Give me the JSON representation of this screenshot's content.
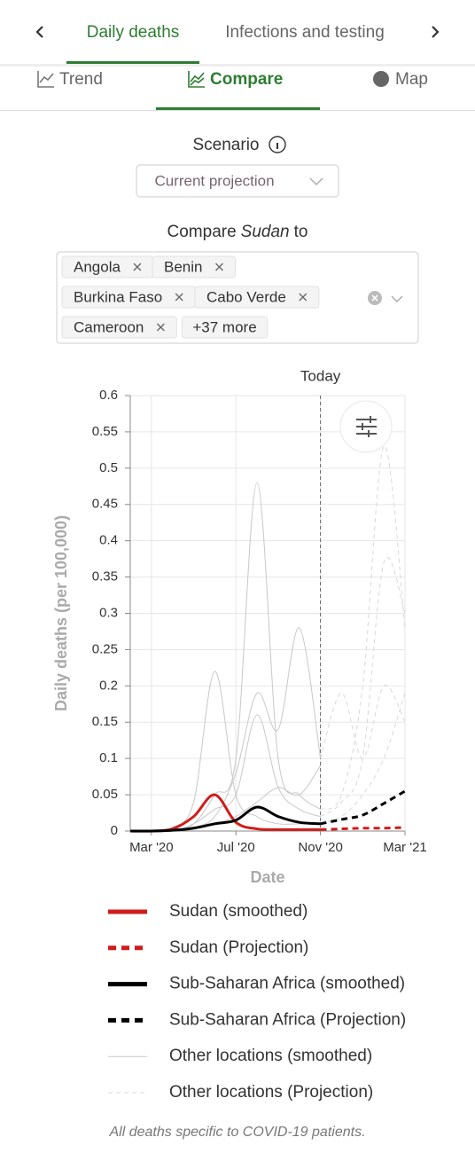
{
  "tabs": [
    "Daily deaths",
    "Infections and testing"
  ],
  "subtabs": [
    "Trend",
    "Compare",
    "Map"
  ],
  "scenario": {
    "label": "Scenario",
    "value": "Current projection"
  },
  "compare": {
    "prefix": "Compare",
    "location": "Sudan",
    "suffix": "to",
    "chips": [
      "Angola",
      "Benin",
      "Burkina Faso",
      "Cabo Verde",
      "Cameroon"
    ],
    "more": "+37 more"
  },
  "chart_data": {
    "type": "line",
    "x_label": "Date",
    "y_label": "Daily deaths (per 100,000)",
    "xlim": [
      "2020-02",
      "2021-03"
    ],
    "xticks": [
      {
        "value": "2020-03",
        "label": "Mar '20"
      },
      {
        "value": "2020-07",
        "label": "Jul '20"
      },
      {
        "value": "2020-11",
        "label": "Nov '20"
      },
      {
        "value": "2021-03",
        "label": "Mar '21"
      }
    ],
    "ylim": [
      0,
      0.6
    ],
    "yticks": [
      0,
      0.05,
      0.1,
      0.15,
      0.2,
      0.25,
      0.3,
      0.35,
      0.4,
      0.45,
      0.5,
      0.55,
      0.6
    ],
    "grid": true,
    "annotations": [
      {
        "text": "Today",
        "x": "2020-11"
      }
    ],
    "series": [
      {
        "name": "Sudan (smoothed)",
        "color": "#d01c1c",
        "dash": false,
        "width": 3,
        "x": [
          "2020-02",
          "2020-03",
          "2020-04",
          "2020-05",
          "2020-06",
          "2020-07",
          "2020-08",
          "2020-09",
          "2020-10",
          "2020-11"
        ],
        "values": [
          0,
          0,
          0.003,
          0.02,
          0.05,
          0.012,
          0.003,
          0.002,
          0.002,
          0.002
        ]
      },
      {
        "name": "Sudan (Projection)",
        "color": "#d01c1c",
        "dash": true,
        "width": 3,
        "x": [
          "2020-11",
          "2020-12",
          "2021-01",
          "2021-02",
          "2021-03"
        ],
        "values": [
          0.002,
          0.003,
          0.004,
          0.004,
          0.005
        ]
      },
      {
        "name": "Sub-Saharan Africa (smoothed)",
        "color": "#000000",
        "dash": false,
        "width": 3,
        "x": [
          "2020-02",
          "2020-03",
          "2020-04",
          "2020-05",
          "2020-06",
          "2020-07",
          "2020-08",
          "2020-09",
          "2020-10",
          "2020-11"
        ],
        "values": [
          0,
          0,
          0.001,
          0.004,
          0.01,
          0.015,
          0.033,
          0.02,
          0.012,
          0.01
        ]
      },
      {
        "name": "Sub-Saharan Africa (Projection)",
        "color": "#000000",
        "dash": true,
        "width": 3,
        "x": [
          "2020-11",
          "2020-12",
          "2021-01",
          "2021-02",
          "2021-03"
        ],
        "values": [
          0.01,
          0.016,
          0.022,
          0.038,
          0.055
        ]
      },
      {
        "name": "Other locations (smoothed)",
        "color": "#c8c8c8",
        "dash": false,
        "width": 1,
        "x": [
          "2020-02",
          "2020-03",
          "2020-04",
          "2020-05",
          "2020-06",
          "2020-07",
          "2020-08",
          "2020-09",
          "2020-10",
          "2020-11"
        ],
        "values": [
          [
            0,
            0,
            0.005,
            0.04,
            0.22,
            0.05,
            0.02,
            0.01,
            0.01,
            0.01
          ],
          [
            0,
            0,
            0,
            0.01,
            0.05,
            0.1,
            0.48,
            0.1,
            0.05,
            0.03
          ],
          [
            0,
            0,
            0,
            0.005,
            0.02,
            0.08,
            0.19,
            0.14,
            0.28,
            0.1
          ],
          [
            0,
            0,
            0,
            0.01,
            0.03,
            0.05,
            0.16,
            0.06,
            0.03,
            0.02
          ],
          [
            0,
            0,
            0,
            0.003,
            0.01,
            0.02,
            0.04,
            0.06,
            0.05,
            0.09
          ]
        ]
      },
      {
        "name": "Other locations (Projection)",
        "color": "#d8d8d8",
        "dash": true,
        "width": 1,
        "x": [
          "2020-11",
          "2020-12",
          "2021-01",
          "2021-02",
          "2021-03"
        ],
        "values": [
          [
            0.1,
            0.19,
            0.1,
            0.2,
            0.15
          ],
          [
            0.03,
            0.05,
            0.2,
            0.53,
            0.28
          ],
          [
            0.02,
            0.04,
            0.1,
            0.37,
            0.3
          ],
          [
            0.01,
            0.02,
            0.05,
            0.1,
            0.19
          ]
        ]
      }
    ]
  },
  "footnote": "All deaths specific to COVID-19 patients."
}
